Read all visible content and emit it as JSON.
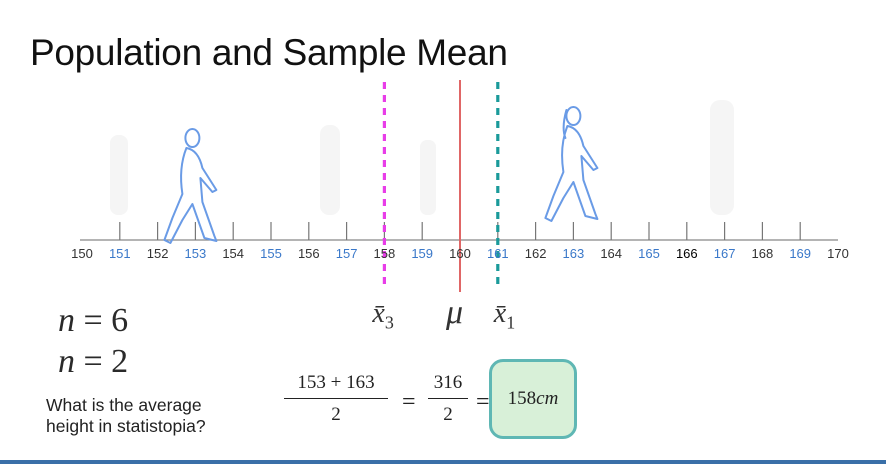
{
  "slide": {
    "title": "Population and Sample Mean",
    "question_line1": "What is the average",
    "question_line2": "height in statistopia?"
  },
  "number_line": {
    "min": 150,
    "max": 170,
    "ticks": [
      {
        "label": "150",
        "color": "#333333"
      },
      {
        "label": "151",
        "color": "#3a78c9"
      },
      {
        "label": "152",
        "color": "#333333"
      },
      {
        "label": "153",
        "color": "#3a78c9"
      },
      {
        "label": "154",
        "color": "#333333"
      },
      {
        "label": "155",
        "color": "#3a78c9"
      },
      {
        "label": "156",
        "color": "#333333"
      },
      {
        "label": "157",
        "color": "#3a78c9"
      },
      {
        "label": "158",
        "color": "#333333"
      },
      {
        "label": "159",
        "color": "#3a78c9"
      },
      {
        "label": "160",
        "color": "#333333"
      },
      {
        "label": "161",
        "color": "#3a78c9"
      },
      {
        "label": "162",
        "color": "#333333"
      },
      {
        "label": "163",
        "color": "#3a78c9"
      },
      {
        "label": "164",
        "color": "#333333"
      },
      {
        "label": "165",
        "color": "#3a78c9"
      },
      {
        "label": "166",
        "color": "#000000"
      },
      {
        "label": "167",
        "color": "#3a78c9"
      },
      {
        "label": "168",
        "color": "#333333"
      },
      {
        "label": "169",
        "color": "#3a78c9"
      },
      {
        "label": "170",
        "color": "#333333"
      }
    ],
    "markers": {
      "x3_value": 158,
      "mu_value": 160,
      "x1_value": 161
    },
    "colors": {
      "x3_line": "#e83de8",
      "mu_line": "#e06666",
      "x1_line": "#1a9a9a",
      "figure": "#6a9be6"
    },
    "figures": [
      {
        "name": "man",
        "height_value": 153
      },
      {
        "name": "woman",
        "height_value": 163
      }
    ]
  },
  "symbols": {
    "x3_base": "x̄",
    "x3_sub": "3",
    "mu": "μ",
    "x1_base": "x̄",
    "x1_sub": "1"
  },
  "equations": {
    "n_var": "n",
    "eq1_value": "= 6",
    "eq2_value": "= 2"
  },
  "calculation": {
    "frac1_num": "153 + 163",
    "frac1_den": "2",
    "equals1": "=",
    "frac2_num": "316",
    "frac2_den": "2",
    "equals2": "=",
    "result_value": "158",
    "result_unit": "cm"
  }
}
